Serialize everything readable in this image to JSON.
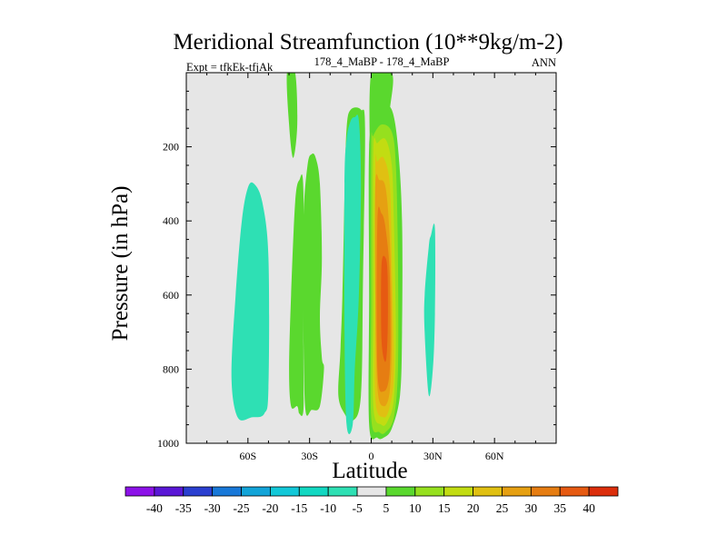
{
  "chart_data": {
    "type": "contour",
    "title": "Meridional Streamfunction (10**9kg/m-2)",
    "subtitle_left": "Expt = tfkEk-tfjAk",
    "subtitle_center": "178_4_MaBP - 178_4_MaBP",
    "subtitle_right": "ANN",
    "xlabel": "Latitude",
    "ylabel": "Pressure (in hPa)",
    "xlim": [
      -90,
      90
    ],
    "ylim": [
      1000,
      0
    ],
    "xticks": [
      {
        "value": -60,
        "label": "60S"
      },
      {
        "value": -30,
        "label": "30S"
      },
      {
        "value": 0,
        "label": "0"
      },
      {
        "value": 30,
        "label": "30N"
      },
      {
        "value": 60,
        "label": "60N"
      }
    ],
    "yticks": [
      {
        "value": 200,
        "label": "200"
      },
      {
        "value": 400,
        "label": "400"
      },
      {
        "value": 600,
        "label": "600"
      },
      {
        "value": 800,
        "label": "800"
      },
      {
        "value": 1000,
        "label": "1000"
      }
    ],
    "levels": [
      -40,
      -35,
      -30,
      -25,
      -20,
      -15,
      -10,
      -5,
      5,
      10,
      15,
      20,
      25,
      30,
      35,
      40
    ],
    "level_labels": [
      "-40",
      "-35",
      "-30",
      "-25",
      "-20",
      "-15",
      "-10",
      "-5",
      "5",
      "10",
      "15",
      "20",
      "25",
      "30",
      "35",
      "40"
    ],
    "colors": [
      "#8c12e8",
      "#5a17d6",
      "#2a3fd0",
      "#1878d8",
      "#12a4d8",
      "#12c8d8",
      "#12d8c2",
      "#2ee0b4",
      "#e6e6e6",
      "#5ad82e",
      "#96e01e",
      "#c2dc12",
      "#e0c012",
      "#e6a012",
      "#e67d12",
      "#e65a12",
      "#dc2e0c"
    ],
    "background_color": "#e6e6e6",
    "features": [
      {
        "name": "cell-60S",
        "band": "-10 to -5",
        "points": [
          [
            -65,
            930
          ],
          [
            -68,
            820
          ],
          [
            -66,
            600
          ],
          [
            -63,
            400
          ],
          [
            -60,
            310
          ],
          [
            -57,
            300
          ],
          [
            -53,
            350
          ],
          [
            -50,
            500
          ],
          [
            -50,
            850
          ],
          [
            -52,
            920
          ],
          [
            -58,
            930
          ]
        ]
      },
      {
        "name": "top-column-40S",
        "band": "5 to 10",
        "points": [
          [
            -41,
            0
          ],
          [
            -40,
            140
          ],
          [
            -38,
            230
          ],
          [
            -36,
            140
          ],
          [
            -37,
            0
          ]
        ]
      },
      {
        "name": "cell-40S",
        "band": "5 to 10",
        "points": [
          [
            -39,
            900
          ],
          [
            -40,
            800
          ],
          [
            -39,
            600
          ],
          [
            -37,
            350
          ],
          [
            -35,
            290
          ],
          [
            -33,
            320
          ],
          [
            -33,
            750
          ],
          [
            -33,
            910
          ],
          [
            -35,
            920
          ],
          [
            -36,
            900
          ]
        ]
      },
      {
        "name": "cell-25S",
        "band": "5 to 10",
        "points": [
          [
            -32,
            910
          ],
          [
            -33,
            700
          ],
          [
            -33,
            400
          ],
          [
            -31,
            250
          ],
          [
            -29,
            220
          ],
          [
            -27,
            230
          ],
          [
            -25,
            300
          ],
          [
            -24,
            500
          ],
          [
            -25,
            660
          ],
          [
            -24,
            770
          ],
          [
            -23,
            800
          ],
          [
            -25,
            900
          ],
          [
            -29,
            910
          ]
        ]
      },
      {
        "name": "cell-12S",
        "band": "5 to 10",
        "points": [
          [
            -16,
            870
          ],
          [
            -15,
            750
          ],
          [
            -14,
            600
          ],
          [
            -13,
            330
          ],
          [
            -12,
            150
          ],
          [
            -10,
            100
          ],
          [
            -5,
            100
          ],
          [
            -3,
            150
          ],
          [
            -4,
            550
          ],
          [
            -5,
            870
          ],
          [
            -9,
            940
          ],
          [
            -13,
            920
          ]
        ]
      },
      {
        "name": "cell-8S-inner",
        "band": "-10 to -5",
        "points": [
          [
            -12,
            950
          ],
          [
            -13,
            700
          ],
          [
            -13,
            300
          ],
          [
            -12,
            180
          ],
          [
            -10,
            130
          ],
          [
            -8,
            120
          ],
          [
            -6,
            130
          ],
          [
            -5,
            300
          ],
          [
            -6,
            600
          ],
          [
            -8,
            800
          ],
          [
            -9,
            950
          ]
        ]
      },
      {
        "name": "top-column-eq",
        "band": "5 to 10",
        "points": [
          [
            0,
            0
          ],
          [
            0,
            300
          ],
          [
            3,
            300
          ],
          [
            9,
            100
          ],
          [
            10,
            0
          ]
        ]
      },
      {
        "name": "ascending-cell-5",
        "band": "5 to 10",
        "points": [
          [
            -1,
            200
          ],
          [
            -1,
            600
          ],
          [
            -1,
            950
          ],
          [
            3,
            985
          ],
          [
            6,
            985
          ],
          [
            10,
            960
          ],
          [
            14,
            870
          ],
          [
            15,
            700
          ],
          [
            15,
            400
          ],
          [
            13,
            200
          ],
          [
            10,
            100
          ],
          [
            5,
            90
          ],
          [
            2,
            140
          ]
        ]
      },
      {
        "name": "ascending-cell-10",
        "band": "10 to 15",
        "points": [
          [
            0,
            200
          ],
          [
            0,
            600
          ],
          [
            0,
            930
          ],
          [
            4,
            970
          ],
          [
            7,
            970
          ],
          [
            11,
            930
          ],
          [
            13,
            800
          ],
          [
            13,
            500
          ],
          [
            12,
            250
          ],
          [
            10,
            160
          ],
          [
            5,
            140
          ],
          [
            1,
            170
          ]
        ]
      },
      {
        "name": "ascending-cell-15",
        "band": "15 to 20",
        "points": [
          [
            1,
            210
          ],
          [
            1,
            600
          ],
          [
            1,
            900
          ],
          [
            5,
            950
          ],
          [
            8,
            940
          ],
          [
            11,
            880
          ],
          [
            12,
            700
          ],
          [
            11,
            400
          ],
          [
            10,
            250
          ],
          [
            7,
            180
          ],
          [
            3,
            190
          ]
        ]
      },
      {
        "name": "ascending-cell-20",
        "band": "20 to 25",
        "points": [
          [
            2,
            250
          ],
          [
            2,
            600
          ],
          [
            2,
            880
          ],
          [
            6,
            930
          ],
          [
            9,
            900
          ],
          [
            11,
            800
          ],
          [
            10,
            500
          ],
          [
            9,
            300
          ],
          [
            6,
            230
          ],
          [
            3,
            240
          ]
        ]
      },
      {
        "name": "ascending-cell-25",
        "band": "25 to 30",
        "points": [
          [
            2,
            300
          ],
          [
            2,
            600
          ],
          [
            3,
            850
          ],
          [
            6,
            900
          ],
          [
            9,
            860
          ],
          [
            10,
            700
          ],
          [
            9,
            450
          ],
          [
            7,
            310
          ],
          [
            4,
            290
          ]
        ]
      },
      {
        "name": "ascending-cell-30",
        "band": "30 to 35",
        "points": [
          [
            3,
            400
          ],
          [
            3,
            800
          ],
          [
            6,
            860
          ],
          [
            9,
            800
          ],
          [
            9,
            550
          ],
          [
            7,
            420
          ],
          [
            5,
            380
          ]
        ]
      },
      {
        "name": "ascending-cell-35",
        "band": "35 to 40",
        "points": [
          [
            5,
            520
          ],
          [
            5,
            720
          ],
          [
            7,
            780
          ],
          [
            8,
            700
          ],
          [
            8,
            550
          ],
          [
            7,
            500
          ]
        ]
      },
      {
        "name": "cell-30N",
        "band": "-10 to -5",
        "points": [
          [
            28,
            470
          ],
          [
            26,
            600
          ],
          [
            26,
            700
          ],
          [
            28,
            870
          ],
          [
            30,
            800
          ],
          [
            31,
            650
          ],
          [
            31,
            420
          ],
          [
            29,
            440
          ]
        ]
      }
    ]
  }
}
